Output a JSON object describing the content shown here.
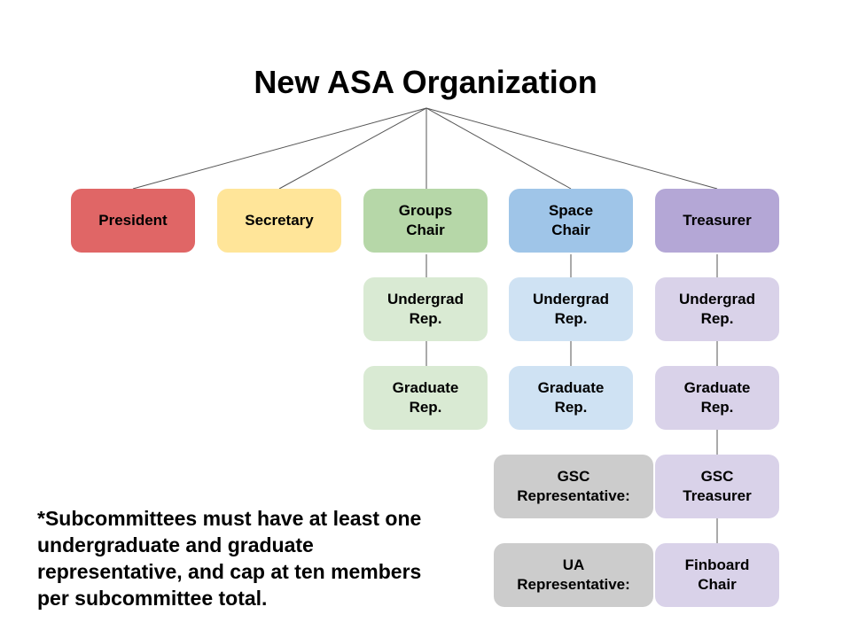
{
  "title": "New ASA Organization",
  "nodes": {
    "president": "President",
    "secretary": "Secretary",
    "groups_chair": "Groups\nChair",
    "space_chair": "Space\nChair",
    "treasurer": "Treasurer",
    "groups_undergrad": "Undergrad\nRep.",
    "groups_graduate": "Graduate\nRep.",
    "space_undergrad": "Undergrad\nRep.",
    "space_graduate": "Graduate\nRep.",
    "treasurer_undergrad": "Undergrad\nRep.",
    "treasurer_graduate": "Graduate\nRep.",
    "gsc_representative": "GSC\nRepresentative:",
    "gsc_treasurer": "GSC\nTreasurer",
    "ua_representative": "UA\nRepresentative:",
    "finboard_chair": "Finboard\nChair"
  },
  "footnote": "*Subcommittees must have at least one undergraduate and graduate representative, and cap at ten members per subcommittee total.",
  "colors": {
    "president": "#e06666",
    "secretary": "#ffe599",
    "groups": "#b6d7a8",
    "groups_light": "#d9ead3",
    "space": "#9fc5e8",
    "space_light": "#cfe2f3",
    "treasurer": "#b4a7d6",
    "treasurer_light": "#d9d2e9",
    "gray": "#cccccc",
    "connector": "#555555"
  }
}
